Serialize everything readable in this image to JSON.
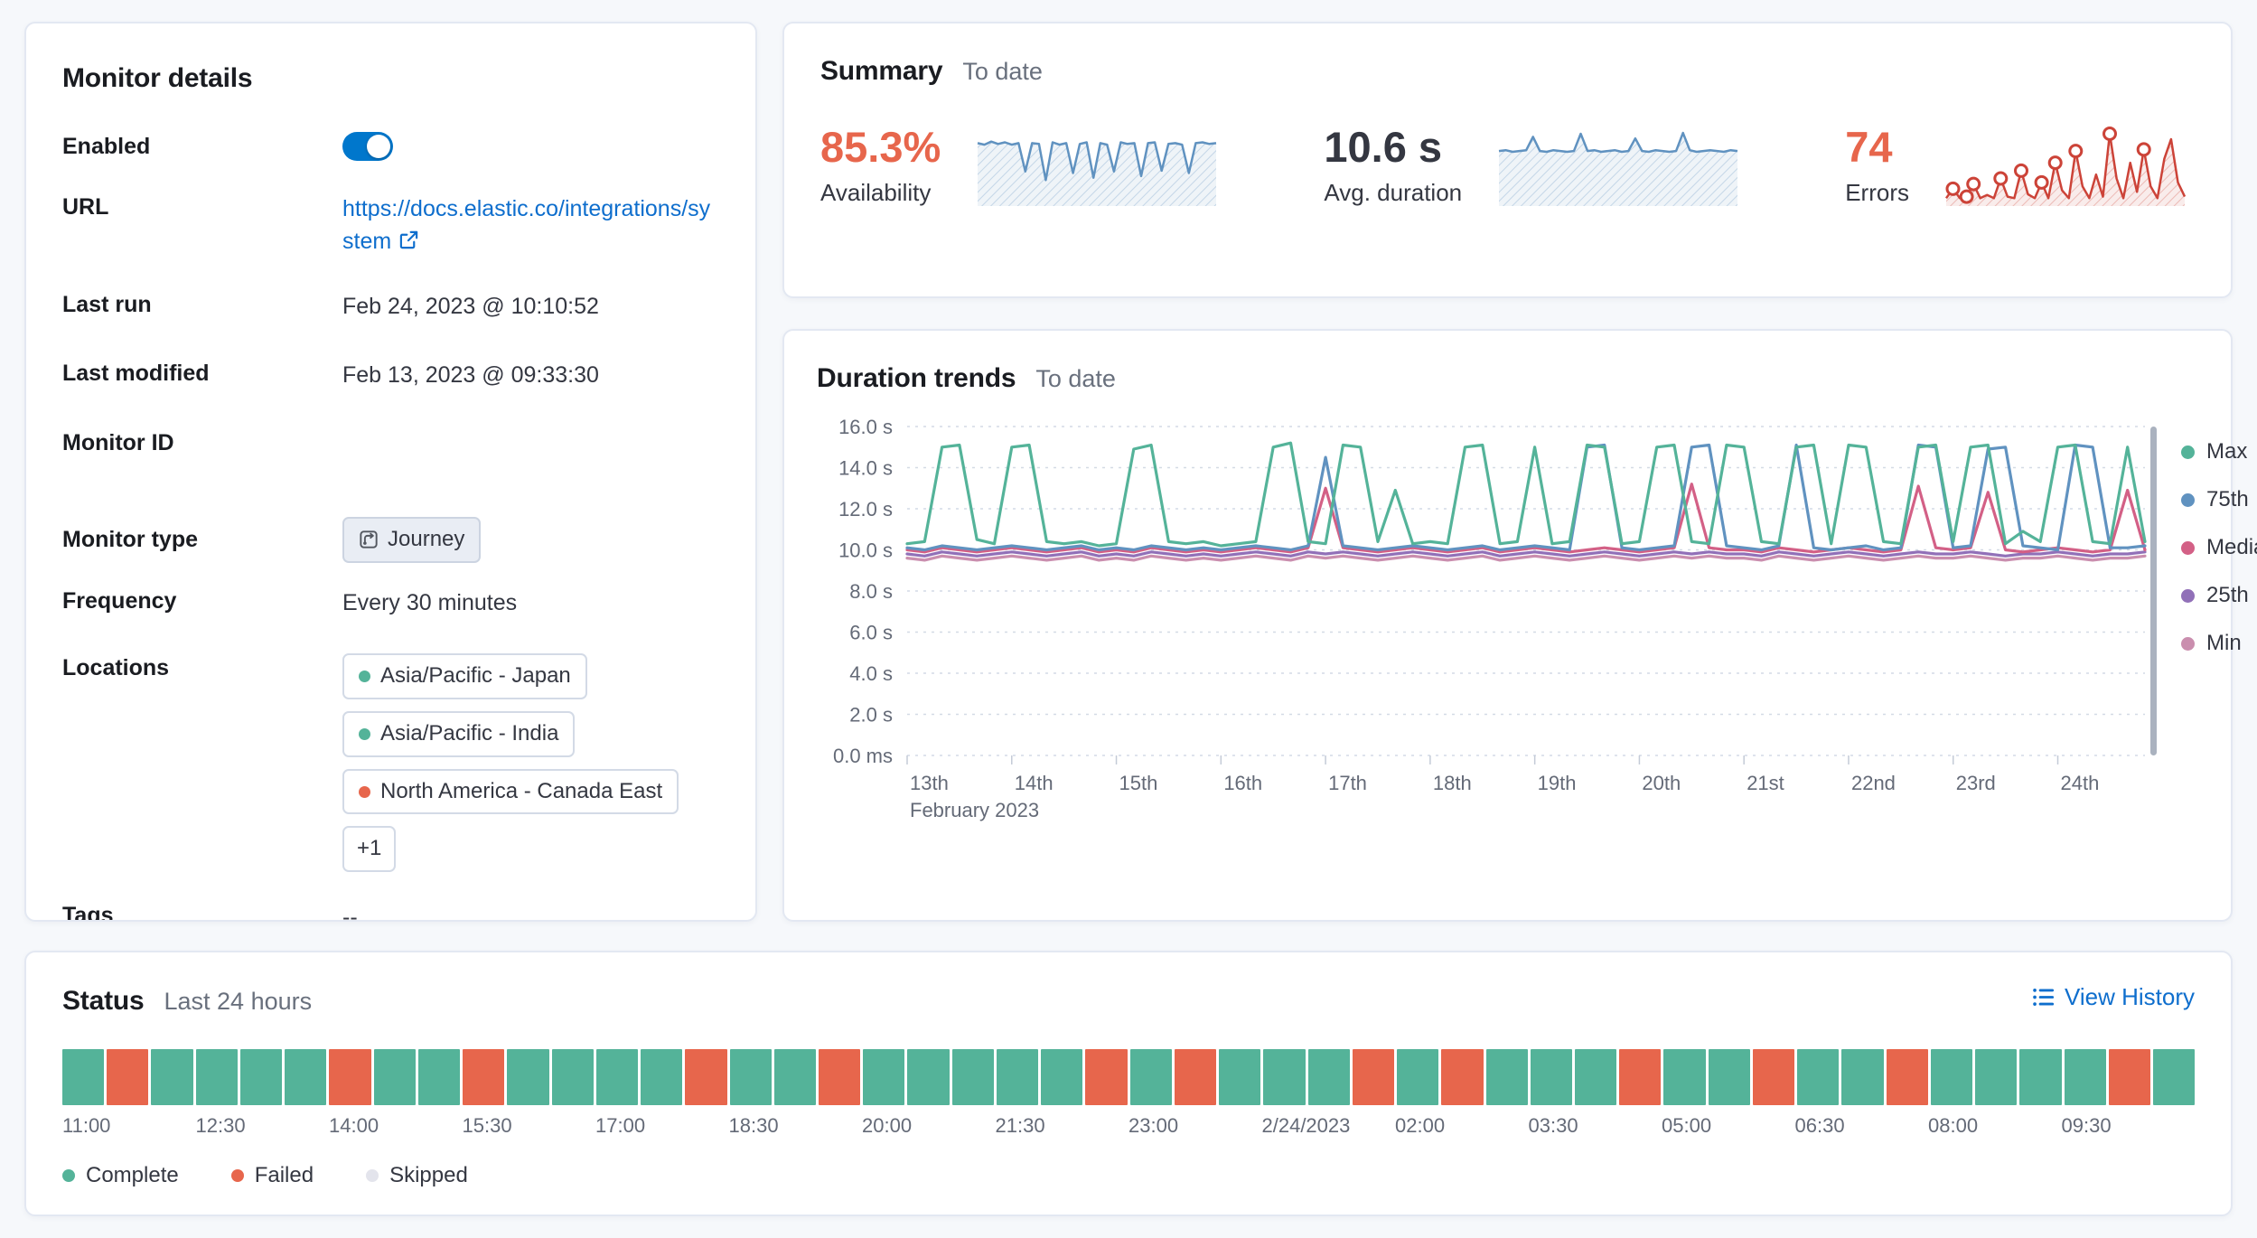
{
  "app": {
    "colors": {
      "link": "#0e6ecd",
      "toggle_on": "#0077cc",
      "panel_border": "#e3e8f2",
      "background": "#f6f8fb",
      "axis_text": "#646a77",
      "grid_line": "#d4dae5"
    }
  },
  "monitor_details": {
    "title": "Monitor details",
    "enabled": {
      "label": "Enabled",
      "state": "on"
    },
    "url": {
      "label": "URL",
      "value": "https://docs.elastic.co/integrations/system"
    },
    "last_run": {
      "label": "Last run",
      "value": "Feb 24, 2023 @ 10:10:52"
    },
    "last_modified": {
      "label": "Last modified",
      "value": "Feb 13, 2023 @ 09:33:30"
    },
    "monitor_id": {
      "label": "Monitor ID",
      "value": ""
    },
    "monitor_type": {
      "label": "Monitor type",
      "value": "Journey"
    },
    "frequency": {
      "label": "Frequency",
      "value": "Every 30 minutes"
    },
    "locations": {
      "label": "Locations",
      "badges": [
        {
          "label": "Asia/Pacific - Japan",
          "dot_color": "#54b399"
        },
        {
          "label": "Asia/Pacific - India",
          "dot_color": "#54b399"
        },
        {
          "label": "North America - Canada East",
          "dot_color": "#e7664c"
        }
      ],
      "more_badge": "+1"
    },
    "tags": {
      "label": "Tags",
      "value": "--"
    }
  },
  "summary": {
    "title": "Summary",
    "subtitle": "To date",
    "stats": [
      {
        "value": "85.3%",
        "caption": "Availability",
        "value_color": "#e7664c",
        "spark_color": "#6092c0",
        "spark_values": [
          0.8,
          0.78,
          0.82,
          0.79,
          0.81,
          0.78,
          0.8,
          0.44,
          0.8,
          0.79,
          0.33,
          0.81,
          0.78,
          0.8,
          0.42,
          0.79,
          0.81,
          0.36,
          0.8,
          0.78,
          0.44,
          0.81,
          0.79,
          0.8,
          0.38,
          0.8,
          0.81,
          0.45,
          0.79,
          0.8,
          0.78,
          0.42,
          0.8,
          0.81,
          0.79,
          0.8
        ],
        "spark_markers": []
      },
      {
        "value": "10.6 s",
        "caption": "Avg. duration",
        "value_color": "#343741",
        "spark_color": "#6092c0",
        "spark_values": [
          0.7,
          0.71,
          0.69,
          0.7,
          0.71,
          0.88,
          0.7,
          0.69,
          0.71,
          0.7,
          0.69,
          0.7,
          0.92,
          0.7,
          0.71,
          0.69,
          0.7,
          0.71,
          0.69,
          0.7,
          0.86,
          0.7,
          0.69,
          0.71,
          0.7,
          0.69,
          0.7,
          0.93,
          0.71,
          0.69,
          0.7,
          0.71,
          0.7,
          0.69,
          0.71,
          0.7
        ],
        "spark_markers": []
      },
      {
        "value": "74",
        "caption": "Errors",
        "value_color": "#e7664c",
        "spark_color": "#cc4338",
        "spark_values": [
          0.1,
          0.22,
          0.1,
          0.12,
          0.28,
          0.1,
          0.14,
          0.1,
          0.35,
          0.12,
          0.1,
          0.45,
          0.15,
          0.1,
          0.3,
          0.1,
          0.55,
          0.2,
          0.1,
          0.7,
          0.25,
          0.1,
          0.4,
          0.12,
          0.92,
          0.35,
          0.1,
          0.55,
          0.18,
          0.72,
          0.25,
          0.1,
          0.6,
          0.85,
          0.3,
          0.12
        ],
        "spark_markers": [
          1,
          3,
          4,
          8,
          11,
          14,
          16,
          19,
          24,
          29
        ]
      }
    ]
  },
  "duration_trends": {
    "title": "Duration trends",
    "subtitle": "To date",
    "chart_data": {
      "type": "line",
      "unit": "seconds",
      "y_max": 16,
      "y_ticks": [
        "16.0 s",
        "14.0 s",
        "12.0 s",
        "10.0 s",
        "8.0 s",
        "6.0 s",
        "4.0 s",
        "2.0 s",
        "0.0 ms"
      ],
      "x_ticks": [
        "13th",
        "14th",
        "15th",
        "16th",
        "17th",
        "18th",
        "19th",
        "20th",
        "21st",
        "22nd",
        "23rd",
        "24th"
      ],
      "x_axis_secondary": "February 2023",
      "legend_position": "right",
      "series": [
        {
          "name": "Max",
          "color": "#54b399",
          "values": [
            10.3,
            10.4,
            15.0,
            15.1,
            10.5,
            10.3,
            15.0,
            15.1,
            10.4,
            10.3,
            10.4,
            10.2,
            10.3,
            14.9,
            15.1,
            10.4,
            10.3,
            10.4,
            10.2,
            10.3,
            10.4,
            15.0,
            15.2,
            10.4,
            10.3,
            15.1,
            15.0,
            10.4,
            12.9,
            10.3,
            10.4,
            10.3,
            15.0,
            15.1,
            10.3,
            10.4,
            15.0,
            10.3,
            10.4,
            15.1,
            15.0,
            10.3,
            10.4,
            15.0,
            15.1,
            10.4,
            10.3,
            15.1,
            15.0,
            10.4,
            10.3,
            15.0,
            15.1,
            10.3,
            15.1,
            15.0,
            10.4,
            10.3,
            15.0,
            15.1,
            10.4,
            15.0,
            15.1,
            10.3,
            10.9,
            10.4,
            15.0,
            15.1,
            10.4,
            10.3,
            15.0,
            10.4
          ]
        },
        {
          "name": "75th",
          "color": "#6092c0",
          "values": [
            10.1,
            10.0,
            10.2,
            10.1,
            10.0,
            10.1,
            10.2,
            10.1,
            10.0,
            10.1,
            10.2,
            10.0,
            10.1,
            10.0,
            10.2,
            10.1,
            10.0,
            10.1,
            10.0,
            10.1,
            10.2,
            10.1,
            10.0,
            10.2,
            14.5,
            10.2,
            10.1,
            10.0,
            10.1,
            10.2,
            10.1,
            10.0,
            10.1,
            10.2,
            10.0,
            10.1,
            10.2,
            10.1,
            10.0,
            15.0,
            15.1,
            10.1,
            10.0,
            10.1,
            10.2,
            15.0,
            15.1,
            10.2,
            10.1,
            10.0,
            10.2,
            15.1,
            10.1,
            10.0,
            10.1,
            10.2,
            10.0,
            10.1,
            15.1,
            15.0,
            10.1,
            10.2,
            14.9,
            15.0,
            10.2,
            10.1,
            10.0,
            15.1,
            15.0,
            10.1,
            10.1,
            10.2
          ]
        },
        {
          "name": "Median",
          "color": "#d36086",
          "values": [
            10.0,
            9.9,
            10.1,
            10.0,
            9.9,
            10.0,
            10.1,
            10.0,
            9.9,
            10.0,
            10.1,
            9.9,
            10.0,
            9.9,
            10.1,
            10.0,
            9.9,
            10.0,
            9.9,
            10.0,
            10.1,
            10.0,
            9.9,
            10.1,
            13.0,
            10.1,
            10.0,
            9.9,
            10.0,
            10.1,
            10.0,
            9.9,
            10.0,
            10.1,
            9.9,
            10.0,
            10.1,
            10.0,
            9.9,
            10.0,
            10.1,
            10.0,
            9.9,
            10.0,
            10.1,
            13.2,
            10.1,
            10.0,
            10.0,
            9.9,
            10.1,
            10.0,
            9.9,
            10.0,
            10.1,
            10.0,
            9.9,
            10.0,
            13.1,
            10.1,
            10.0,
            10.1,
            12.8,
            10.0,
            9.9,
            10.0,
            10.1,
            10.0,
            9.9,
            10.0,
            12.9,
            10.0
          ]
        },
        {
          "name": "25th",
          "color": "#9170b8",
          "values": [
            9.8,
            9.7,
            9.9,
            9.8,
            9.7,
            9.8,
            9.9,
            9.8,
            9.7,
            9.8,
            9.9,
            9.7,
            9.8,
            9.7,
            9.9,
            9.8,
            9.7,
            9.8,
            9.7,
            9.8,
            9.9,
            9.8,
            9.7,
            9.9,
            9.8,
            9.9,
            9.8,
            9.7,
            9.8,
            9.9,
            9.8,
            9.7,
            9.8,
            9.9,
            9.7,
            9.8,
            9.9,
            9.8,
            9.7,
            9.8,
            9.9,
            9.8,
            9.7,
            9.8,
            9.9,
            9.8,
            9.9,
            9.8,
            9.8,
            9.7,
            9.9,
            9.8,
            9.7,
            9.8,
            9.9,
            9.8,
            9.7,
            9.8,
            9.9,
            9.8,
            9.8,
            9.9,
            9.8,
            9.7,
            9.8,
            9.8,
            9.9,
            9.8,
            9.7,
            9.8,
            9.8,
            9.9
          ]
        },
        {
          "name": "Min",
          "color": "#ca8eae",
          "values": [
            9.6,
            9.5,
            9.7,
            9.6,
            9.5,
            9.6,
            9.7,
            9.6,
            9.5,
            9.6,
            9.7,
            9.5,
            9.6,
            9.5,
            9.7,
            9.6,
            9.5,
            9.6,
            9.5,
            9.6,
            9.7,
            9.6,
            9.5,
            9.7,
            9.6,
            9.7,
            9.6,
            9.5,
            9.6,
            9.7,
            9.6,
            9.5,
            9.6,
            9.7,
            9.5,
            9.6,
            9.7,
            9.6,
            9.5,
            9.6,
            9.7,
            9.6,
            9.5,
            9.6,
            9.7,
            9.6,
            9.7,
            9.6,
            9.6,
            9.5,
            9.7,
            9.6,
            9.5,
            9.6,
            9.7,
            9.6,
            9.5,
            9.6,
            9.7,
            9.6,
            9.6,
            9.7,
            9.6,
            9.5,
            9.6,
            9.6,
            9.7,
            9.6,
            9.5,
            9.6,
            9.6,
            9.7
          ]
        }
      ]
    }
  },
  "status": {
    "title": "Status",
    "subtitle": "Last 24 hours",
    "view_history": "View History",
    "chart_data": {
      "type": "status-timeline",
      "colors": {
        "complete": "#54b399",
        "failed": "#e7664c",
        "skipped": "#e3e4ec"
      },
      "segment_states": [
        "complete",
        "failed",
        "complete",
        "complete",
        "complete",
        "complete",
        "failed",
        "complete",
        "complete",
        "failed",
        "complete",
        "complete",
        "complete",
        "complete",
        "failed",
        "complete",
        "complete",
        "failed",
        "complete",
        "complete",
        "complete",
        "complete",
        "complete",
        "failed",
        "complete",
        "failed",
        "complete",
        "complete",
        "complete",
        "failed",
        "complete",
        "failed",
        "complete",
        "complete",
        "complete",
        "failed",
        "complete",
        "complete",
        "failed",
        "complete",
        "complete",
        "failed",
        "complete",
        "complete",
        "complete",
        "complete",
        "failed",
        "complete"
      ],
      "time_labels": [
        "11:00",
        "12:30",
        "14:00",
        "15:30",
        "17:00",
        "18:30",
        "20:00",
        "21:30",
        "23:00",
        "2/24/2023",
        "02:00",
        "03:30",
        "05:00",
        "06:30",
        "08:00",
        "09:30"
      ],
      "labels_every_n_segments": 3
    },
    "legend": [
      {
        "label": "Complete",
        "color": "#54b399"
      },
      {
        "label": "Failed",
        "color": "#e7664c"
      },
      {
        "label": "Skipped",
        "color": "#e3e4ec"
      }
    ]
  }
}
